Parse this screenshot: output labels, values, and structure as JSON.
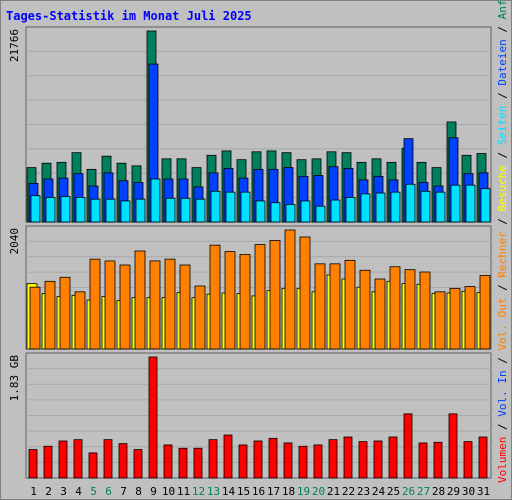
{
  "title": "Tages-Statistik im Monat Juli 2025",
  "colors": {
    "title": "#0000ff",
    "frame_bg": "#c0c0c0",
    "plot_bg": "#c0c0c0",
    "anfragen": "#00805c",
    "dateien": "#0040ff",
    "seiten": "#00e0ff",
    "besuche": "#ffff00",
    "rechner": "#ff8000",
    "volumen": "#ff0000",
    "weekday_label": "#000000",
    "weekend_label": "#00805c"
  },
  "right_labels": {
    "top": [
      {
        "text": "Anfragen",
        "color": "#00805c"
      },
      {
        "text": "Dateien",
        "color": "#0040ff"
      },
      {
        "text": "Seiten",
        "color": "#00e0ff"
      },
      {
        "text": "Besuche",
        "color": "#ffff00"
      },
      {
        "text": "Rechner",
        "color": "#ff8000"
      },
      {
        "text": "Vol. Out",
        "color": "#ff8000"
      },
      {
        "text": "Vol. In",
        "color": "#0040ff"
      },
      {
        "text": "Volumen",
        "color": "#ff0000"
      }
    ],
    "separator": " / "
  },
  "chart_data": [
    {
      "type": "bar",
      "panel": "requests",
      "max_label": "21766",
      "ylim": [
        0,
        21766
      ],
      "categories": [
        "1",
        "2",
        "3",
        "4",
        "5",
        "6",
        "7",
        "8",
        "9",
        "10",
        "11",
        "12",
        "13",
        "14",
        "15",
        "16",
        "17",
        "18",
        "19",
        "20",
        "21",
        "22",
        "23",
        "24",
        "25",
        "26",
        "27",
        "28",
        "29",
        "30",
        "31"
      ],
      "weekend": [
        5,
        6,
        12,
        13,
        19,
        20,
        26,
        27
      ],
      "series": [
        {
          "name": "Anfragen",
          "values": [
            6200,
            6700,
            6800,
            7900,
            6000,
            7500,
            6700,
            6400,
            21766,
            7200,
            7200,
            6200,
            7600,
            8100,
            7100,
            8000,
            8100,
            7900,
            7100,
            7200,
            8000,
            7900,
            6800,
            7200,
            6800,
            8400,
            6800,
            6200,
            11400,
            7600,
            7800
          ]
        },
        {
          "name": "Dateien",
          "values": [
            4400,
            4900,
            5000,
            5500,
            4100,
            5600,
            4700,
            4500,
            18000,
            4900,
            4900,
            4000,
            5600,
            6100,
            5000,
            6000,
            6000,
            6200,
            5200,
            5300,
            6300,
            6100,
            4800,
            5200,
            4800,
            9500,
            4500,
            4100,
            9600,
            5500,
            5600
          ]
        },
        {
          "name": "Seiten",
          "values": [
            3000,
            2800,
            2900,
            2800,
            2600,
            2600,
            2400,
            2600,
            4900,
            2700,
            2700,
            2600,
            3500,
            3400,
            3400,
            2400,
            2200,
            2000,
            2400,
            1800,
            2500,
            2800,
            3200,
            3300,
            3400,
            4300,
            3500,
            3400,
            4200,
            4200,
            3800
          ]
        }
      ]
    },
    {
      "type": "bar",
      "panel": "visits",
      "max_label": "2040",
      "ylim": [
        0,
        2040
      ],
      "categories": [
        "1",
        "2",
        "3",
        "4",
        "5",
        "6",
        "7",
        "8",
        "9",
        "10",
        "11",
        "12",
        "13",
        "14",
        "15",
        "16",
        "17",
        "18",
        "19",
        "20",
        "21",
        "22",
        "23",
        "24",
        "25",
        "26",
        "27",
        "28",
        "29",
        "30",
        "31"
      ],
      "series": [
        {
          "name": "Besuche",
          "values": [
            1120,
            950,
            900,
            920,
            840,
            900,
            830,
            880,
            880,
            880,
            970,
            880,
            940,
            960,
            950,
            910,
            1000,
            1040,
            1040,
            980,
            1270,
            1200,
            1060,
            980,
            1160,
            1120,
            1110,
            950,
            960,
            990,
            970
          ]
        },
        {
          "name": "Rechner",
          "values": [
            1060,
            1160,
            1230,
            980,
            1540,
            1510,
            1440,
            1680,
            1510,
            1540,
            1440,
            1080,
            1780,
            1670,
            1620,
            1790,
            1860,
            2040,
            1920,
            1460,
            1460,
            1520,
            1350,
            1200,
            1410,
            1360,
            1320,
            980,
            1040,
            1070,
            1260
          ]
        }
      ]
    },
    {
      "type": "bar",
      "panel": "volume",
      "max_label": "1.83 GB",
      "ylim": [
        0,
        1.83
      ],
      "categories": [
        "1",
        "2",
        "3",
        "4",
        "5",
        "6",
        "7",
        "8",
        "9",
        "10",
        "11",
        "12",
        "13",
        "14",
        "15",
        "16",
        "17",
        "18",
        "19",
        "20",
        "21",
        "22",
        "23",
        "24",
        "25",
        "26",
        "27",
        "28",
        "29",
        "30",
        "31"
      ],
      "series": [
        {
          "name": "Volumen",
          "values": [
            0.43,
            0.48,
            0.56,
            0.58,
            0.38,
            0.58,
            0.52,
            0.43,
            1.83,
            0.5,
            0.45,
            0.45,
            0.58,
            0.65,
            0.5,
            0.56,
            0.6,
            0.53,
            0.48,
            0.5,
            0.58,
            0.62,
            0.55,
            0.56,
            0.62,
            0.97,
            0.53,
            0.54,
            0.97,
            0.55,
            0.62
          ]
        }
      ]
    }
  ]
}
